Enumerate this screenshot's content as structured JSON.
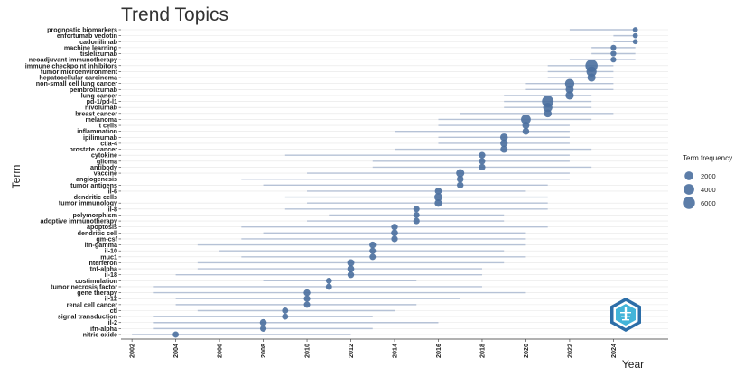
{
  "chart_data": {
    "type": "scatter",
    "title": "Trend Topics",
    "xlabel": "Year",
    "ylabel": "Term",
    "xlim": [
      2001.5,
      2026.5
    ],
    "x_ticks": [
      2002,
      2004,
      2006,
      2008,
      2010,
      2012,
      2014,
      2016,
      2018,
      2020,
      2022,
      2024
    ],
    "grid": "horizontal",
    "legend_position": "right",
    "legend": {
      "title": "Term frequency",
      "entries": [
        {
          "label": "2000",
          "value": 2000
        },
        {
          "label": "4000",
          "value": 4000
        },
        {
          "label": "6000",
          "value": 6000
        }
      ]
    },
    "point_color": "#4a6f9e",
    "range_color": "#b6c2d6",
    "terms": [
      {
        "term": "prognostic biomarkers",
        "start": 2022,
        "median": 2025,
        "end": 2025,
        "freq": 150
      },
      {
        "term": "enfortumab vedotin",
        "start": 2024,
        "median": 2025,
        "end": 2025,
        "freq": 130
      },
      {
        "term": "cadonilimab",
        "start": 2024,
        "median": 2025,
        "end": 2025,
        "freq": 120
      },
      {
        "term": "machine learning",
        "start": 2023,
        "median": 2024,
        "end": 2025,
        "freq": 250
      },
      {
        "term": "tislelizumab",
        "start": 2023,
        "median": 2024,
        "end": 2025,
        "freq": 280
      },
      {
        "term": "neoadjuvant immunotherapy",
        "start": 2022,
        "median": 2024,
        "end": 2025,
        "freq": 260
      },
      {
        "term": "immune checkpoint inhibitors",
        "start": 2021,
        "median": 2023,
        "end": 2024,
        "freq": 6200
      },
      {
        "term": "tumor microenvironment",
        "start": 2021,
        "median": 2023,
        "end": 2024,
        "freq": 3400
      },
      {
        "term": "hepatocellular carcinoma",
        "start": 2021,
        "median": 2023,
        "end": 2024,
        "freq": 1600
      },
      {
        "term": "non-small cell lung cancer",
        "start": 2020,
        "median": 2022,
        "end": 2024,
        "freq": 2600
      },
      {
        "term": "pembrolizumab",
        "start": 2020,
        "median": 2022,
        "end": 2024,
        "freq": 1500
      },
      {
        "term": "lung cancer",
        "start": 2019,
        "median": 2022,
        "end": 2023,
        "freq": 1700
      },
      {
        "term": "pd-1/pd-l1",
        "start": 2019,
        "median": 2021,
        "end": 2023,
        "freq": 5200
      },
      {
        "term": "nivolumab",
        "start": 2019,
        "median": 2021,
        "end": 2023,
        "freq": 2600
      },
      {
        "term": "breast cancer",
        "start": 2017,
        "median": 2021,
        "end": 2024,
        "freq": 1300
      },
      {
        "term": "melanoma",
        "start": 2016,
        "median": 2020,
        "end": 2023,
        "freq": 3000
      },
      {
        "term": "t cells",
        "start": 2016,
        "median": 2020,
        "end": 2022,
        "freq": 900
      },
      {
        "term": "inflammation",
        "start": 2014,
        "median": 2020,
        "end": 2022,
        "freq": 700
      },
      {
        "term": "ipilimumab",
        "start": 2016,
        "median": 2019,
        "end": 2022,
        "freq": 1200
      },
      {
        "term": "ctla-4",
        "start": 2016,
        "median": 2019,
        "end": 2022,
        "freq": 1100
      },
      {
        "term": "prostate cancer",
        "start": 2014,
        "median": 2019,
        "end": 2023,
        "freq": 900
      },
      {
        "term": "cytokine",
        "start": 2009,
        "median": 2018,
        "end": 2022,
        "freq": 600
      },
      {
        "term": "glioma",
        "start": 2013,
        "median": 2018,
        "end": 2022,
        "freq": 550
      },
      {
        "term": "antibody",
        "start": 2013,
        "median": 2018,
        "end": 2023,
        "freq": 600
      },
      {
        "term": "vaccine",
        "start": 2010,
        "median": 2017,
        "end": 2022,
        "freq": 1600
      },
      {
        "term": "angiogenesis",
        "start": 2007,
        "median": 2017,
        "end": 2022,
        "freq": 700
      },
      {
        "term": "tumor antigens",
        "start": 2008,
        "median": 2017,
        "end": 2021,
        "freq": 650
      },
      {
        "term": "il-6",
        "start": 2010,
        "median": 2016,
        "end": 2020,
        "freq": 800
      },
      {
        "term": "dendritic cells",
        "start": 2009,
        "median": 2016,
        "end": 2021,
        "freq": 1500
      },
      {
        "term": "tumor immunology",
        "start": 2010,
        "median": 2016,
        "end": 2021,
        "freq": 1100
      },
      {
        "term": "il-8",
        "start": 2009,
        "median": 2015,
        "end": 2021,
        "freq": 500
      },
      {
        "term": "polymorphism",
        "start": 2011,
        "median": 2015,
        "end": 2019,
        "freq": 500
      },
      {
        "term": "adoptive immunotherapy",
        "start": 2010,
        "median": 2015,
        "end": 2019,
        "freq": 550
      },
      {
        "term": "apoptosis",
        "start": 2007,
        "median": 2014,
        "end": 2021,
        "freq": 600
      },
      {
        "term": "dendritic cell",
        "start": 2008,
        "median": 2014,
        "end": 2020,
        "freq": 800
      },
      {
        "term": "gm-csf",
        "start": 2007,
        "median": 2014,
        "end": 2020,
        "freq": 600
      },
      {
        "term": "ifn-gamma",
        "start": 2005,
        "median": 2013,
        "end": 2020,
        "freq": 650
      },
      {
        "term": "il-10",
        "start": 2006,
        "median": 2013,
        "end": 2019,
        "freq": 550
      },
      {
        "term": "muc1",
        "start": 2007,
        "median": 2013,
        "end": 2020,
        "freq": 500
      },
      {
        "term": "interferon",
        "start": 2005,
        "median": 2012,
        "end": 2019,
        "freq": 900
      },
      {
        "term": "tnf-alpha",
        "start": 2005,
        "median": 2012,
        "end": 2018,
        "freq": 800
      },
      {
        "term": "il-18",
        "start": 2004,
        "median": 2012,
        "end": 2018,
        "freq": 650
      },
      {
        "term": "costimulation",
        "start": 2008,
        "median": 2011,
        "end": 2015,
        "freq": 400
      },
      {
        "term": "tumor necrosis factor",
        "start": 2003,
        "median": 2011,
        "end": 2018,
        "freq": 450
      },
      {
        "term": "gene therapy",
        "start": 2003,
        "median": 2010,
        "end": 2020,
        "freq": 700
      },
      {
        "term": "il-12",
        "start": 2004,
        "median": 2010,
        "end": 2017,
        "freq": 550
      },
      {
        "term": "renal cell cancer",
        "start": 2004,
        "median": 2010,
        "end": 2015,
        "freq": 500
      },
      {
        "term": "ctl",
        "start": 2005,
        "median": 2009,
        "end": 2014,
        "freq": 450
      },
      {
        "term": "signal transduction",
        "start": 2003,
        "median": 2009,
        "end": 2013,
        "freq": 450
      },
      {
        "term": "il-2",
        "start": 2003,
        "median": 2008,
        "end": 2016,
        "freq": 800
      },
      {
        "term": "ifn-alpha",
        "start": 2003,
        "median": 2008,
        "end": 2013,
        "freq": 550
      },
      {
        "term": "nitric oxide",
        "start": 2002,
        "median": 2004,
        "end": 2012,
        "freq": 450
      }
    ]
  }
}
